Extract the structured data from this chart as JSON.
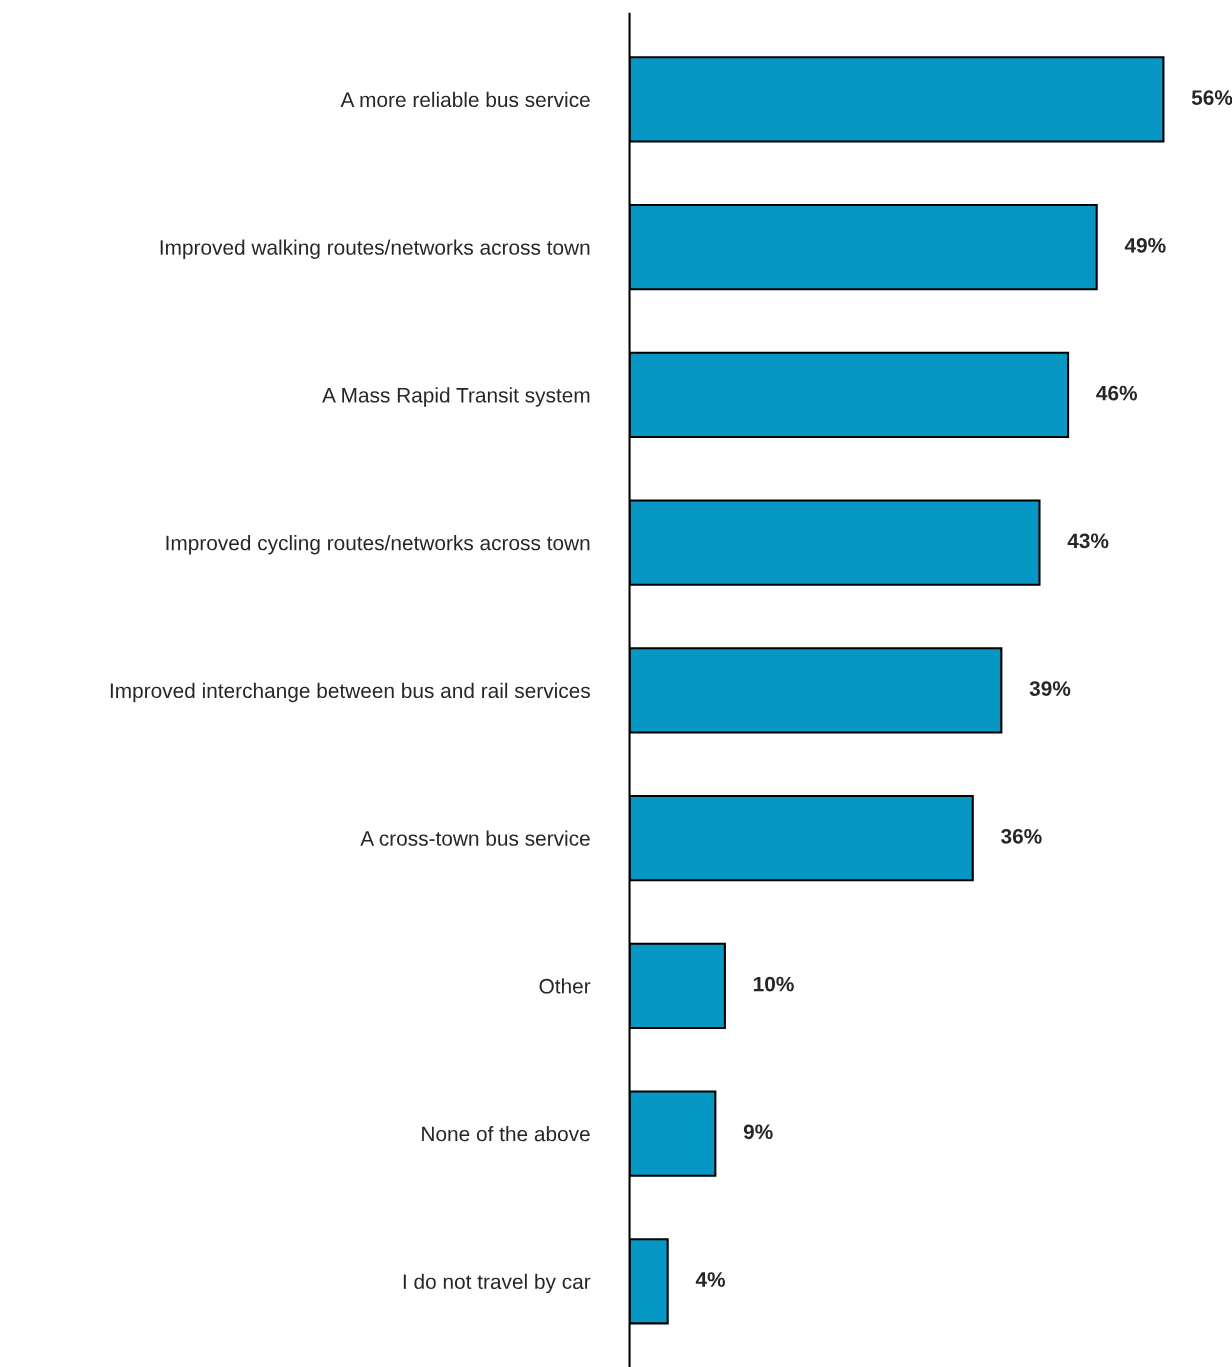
{
  "chart_data": {
    "type": "bar",
    "orientation": "horizontal",
    "categories": [
      "A more reliable bus service",
      "Improved walking routes/networks across town",
      "A Mass Rapid Transit system",
      "Improved cycling routes/networks across town",
      "Improved interchange between bus and rail services",
      "A cross-town bus service",
      "Other",
      "None of the above",
      "I do not travel by car"
    ],
    "values": [
      56,
      49,
      46,
      43,
      39,
      36,
      10,
      9,
      4
    ],
    "value_labels": [
      "56%",
      "49%",
      "46%",
      "43%",
      "39%",
      "36%",
      "10%",
      "9%",
      "4%"
    ],
    "color": "#0797c4",
    "grid": false,
    "legend": false,
    "tick_labels": "y"
  }
}
